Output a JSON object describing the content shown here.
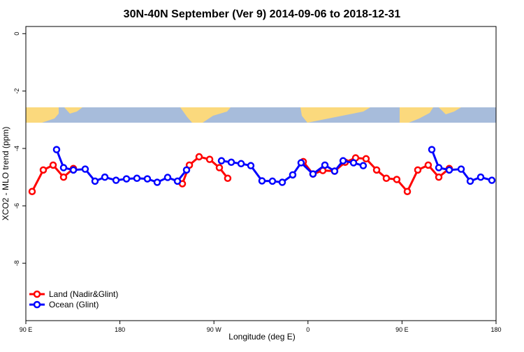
{
  "chart_data": {
    "type": "line",
    "title": "30N-40N September (Ver 9)   2014-09-06 to 2018-12-31",
    "x_label": "Longitude (deg E)",
    "y_label": "XCO2 - MLO trend (ppm)",
    "xlim": [
      90,
      540
    ],
    "ylim": [
      -10,
      0.25
    ],
    "xticks": [
      {
        "value": 90,
        "label": "90 E"
      },
      {
        "value": 180,
        "label": "180"
      },
      {
        "value": 270,
        "label": "90 W"
      },
      {
        "value": 360,
        "label": "0"
      },
      {
        "value": 450,
        "label": "90 E"
      },
      {
        "value": 540,
        "label": "180"
      }
    ],
    "yticks": [
      0,
      -2,
      -4,
      -6,
      -8
    ],
    "legend_position": "bottom-left",
    "series": [
      {
        "name": "Land (Nadir&Glint)",
        "color": "#ff0000",
        "x": [
          96.0,
          106.7,
          116.1,
          126.1,
          135.5,
          190,
          239.8,
          246.5,
          255.8,
          265.9,
          275.2,
          283.2,
          320,
          355.5,
          364.8,
          374.2,
          385.5,
          395.6,
          405.6,
          415.6,
          425.7,
          435.0,
          445.0,
          455.1,
          465.1,
          475.1,
          485.2,
          495.2
        ],
        "values": [
          -5.5,
          -4.75,
          -4.58,
          -5.0,
          -4.7,
          null,
          -5.23,
          -4.58,
          -4.29,
          -4.38,
          -4.67,
          -5.04,
          null,
          -4.46,
          -4.89,
          -4.77,
          -4.79,
          -4.48,
          -4.33,
          -4.36,
          -4.75,
          -5.04,
          -5.08,
          -5.5,
          -4.75,
          -4.58,
          -5.0,
          -4.7
        ]
      },
      {
        "name": "Ocean (Glint)",
        "color": "#0000ff",
        "x": [
          119.4,
          126.1,
          135.5,
          146.8,
          156.2,
          165.6,
          176.3,
          186.3,
          196.3,
          206.3,
          215.7,
          225.7,
          235.1,
          243.8,
          260,
          277.2,
          286.6,
          296.0,
          305.3,
          316.0,
          326.0,
          335.4,
          345.4,
          353.4,
          364.8,
          376.2,
          385.5,
          393.6,
          403.6,
          412.9,
          450,
          478.5,
          485.2,
          495.2,
          506.6,
          515.3,
          525.3,
          536.0
        ],
        "values": [
          -4.04,
          -4.67,
          -4.75,
          -4.72,
          -5.14,
          -5.0,
          -5.11,
          -5.06,
          -5.04,
          -5.06,
          -5.18,
          -5.01,
          -5.14,
          -4.75,
          null,
          -4.43,
          -4.48,
          -4.53,
          -4.6,
          -5.13,
          -5.14,
          -5.18,
          -4.92,
          -4.5,
          -4.89,
          -4.58,
          -4.79,
          -4.43,
          -4.5,
          -4.6,
          null,
          -4.04,
          -4.67,
          -4.75,
          -4.72,
          -5.14,
          -5.0,
          -5.11
        ]
      }
    ]
  }
}
